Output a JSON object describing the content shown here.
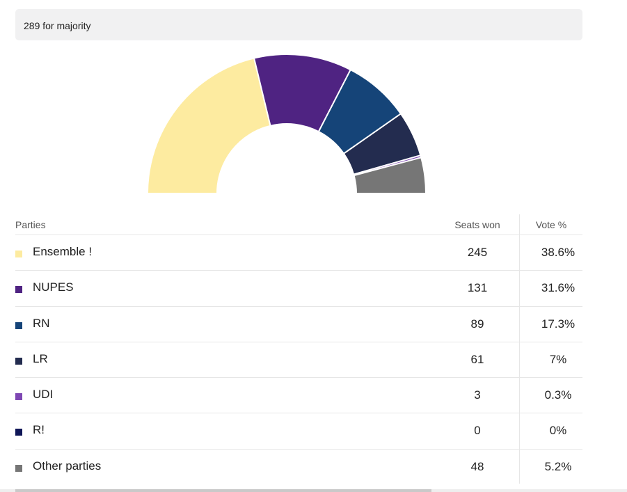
{
  "majority_label": "289 for majority",
  "table": {
    "header_parties": "Parties",
    "header_seats": "Seats won",
    "header_vote": "Vote %"
  },
  "chart_data": {
    "type": "pie",
    "variant": "hemicycle",
    "total_seats": 577,
    "majority": 289,
    "series": [
      {
        "name": "Ensemble !",
        "seats": 245,
        "vote_pct": "38.6%",
        "color": "#fdeba0"
      },
      {
        "name": "NUPES",
        "seats": 131,
        "vote_pct": "31.6%",
        "color": "#4f2382"
      },
      {
        "name": "RN",
        "seats": 89,
        "vote_pct": "17.3%",
        "color": "#154478"
      },
      {
        "name": "LR",
        "seats": 61,
        "vote_pct": "7%",
        "color": "#232c4f"
      },
      {
        "name": "UDI",
        "seats": 3,
        "vote_pct": "0.3%",
        "color": "#7e47b3"
      },
      {
        "name": "R!",
        "seats": 0,
        "vote_pct": "0%",
        "color": "#0f1657"
      },
      {
        "name": "Other parties",
        "seats": 48,
        "vote_pct": "5.2%",
        "color": "#767676"
      }
    ]
  }
}
